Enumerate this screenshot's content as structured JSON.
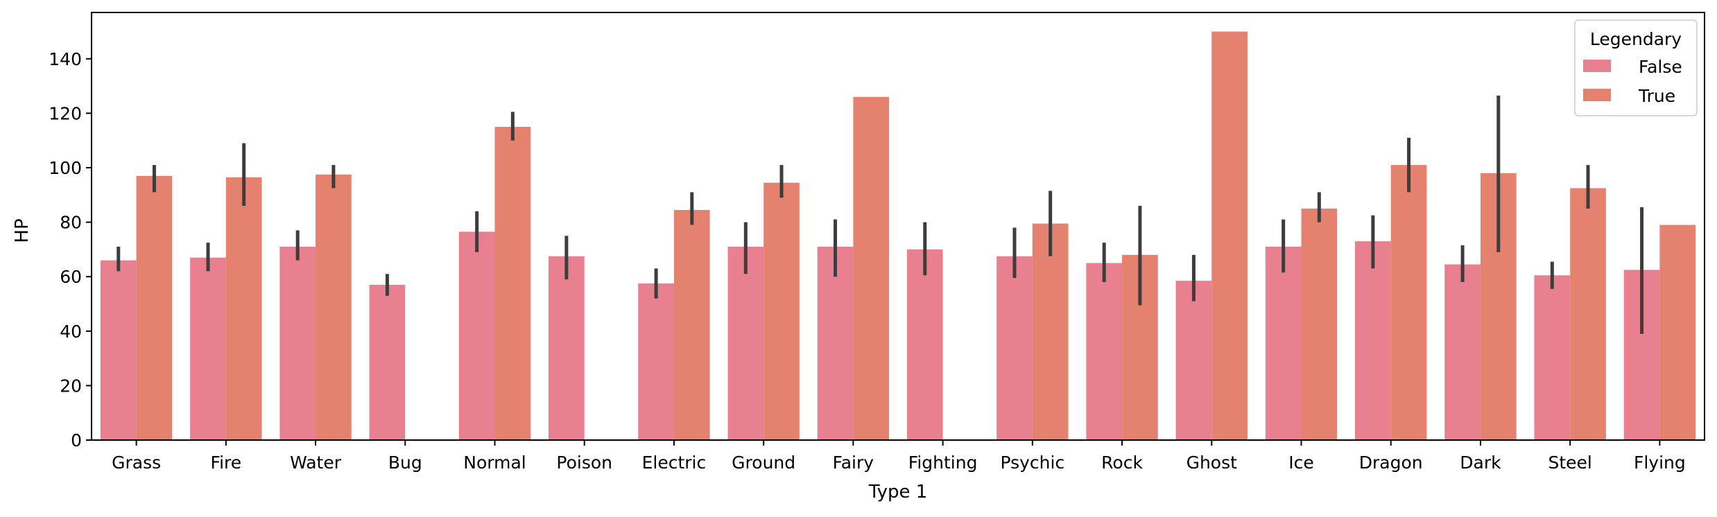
{
  "chart_data": {
    "type": "bar",
    "xlabel": "Type 1",
    "ylabel": "HP",
    "ylim": [
      0,
      157
    ],
    "yticks": [
      0,
      20,
      40,
      60,
      80,
      100,
      120,
      140
    ],
    "grid": false,
    "legend": {
      "title": "Legendary",
      "placement": "top-right"
    },
    "categories": [
      "Grass",
      "Fire",
      "Water",
      "Bug",
      "Normal",
      "Poison",
      "Electric",
      "Ground",
      "Fairy",
      "Fighting",
      "Psychic",
      "Rock",
      "Ghost",
      "Ice",
      "Dragon",
      "Dark",
      "Steel",
      "Flying"
    ],
    "series": [
      {
        "name": "False",
        "color": "#e8808f",
        "values": [
          66,
          67,
          71,
          57,
          76.5,
          67.5,
          57.5,
          71,
          71,
          70,
          67.5,
          65,
          58.5,
          71,
          73,
          64.5,
          60.5,
          62.5
        ],
        "ci": [
          [
            62,
            71
          ],
          [
            62,
            72.5
          ],
          [
            66,
            77
          ],
          [
            53,
            61
          ],
          [
            69,
            84
          ],
          [
            59,
            75
          ],
          [
            52,
            63
          ],
          [
            61,
            80
          ],
          [
            60,
            81
          ],
          [
            60.5,
            80
          ],
          [
            59.5,
            78
          ],
          [
            58,
            72.5
          ],
          [
            51,
            68
          ],
          [
            61.5,
            81
          ],
          [
            63,
            82.5
          ],
          [
            58,
            71.5
          ],
          [
            55.5,
            65.5
          ],
          [
            39,
            85.5
          ]
        ]
      },
      {
        "name": "True",
        "color": "#e5826f",
        "values": [
          97,
          96.5,
          97.5,
          null,
          115,
          null,
          84.5,
          94.5,
          126,
          null,
          79.5,
          68,
          150,
          85,
          101,
          98,
          92.5,
          79
        ],
        "ci": [
          [
            91,
            101
          ],
          [
            86,
            109
          ],
          [
            92.5,
            101
          ],
          null,
          [
            110,
            120.5
          ],
          null,
          [
            79,
            91
          ],
          [
            89,
            101
          ],
          null,
          null,
          [
            67.5,
            91.5
          ],
          [
            49.5,
            86
          ],
          null,
          [
            80,
            91
          ],
          [
            91,
            111
          ],
          [
            69,
            126.5
          ],
          [
            85,
            101
          ],
          null
        ]
      }
    ]
  }
}
